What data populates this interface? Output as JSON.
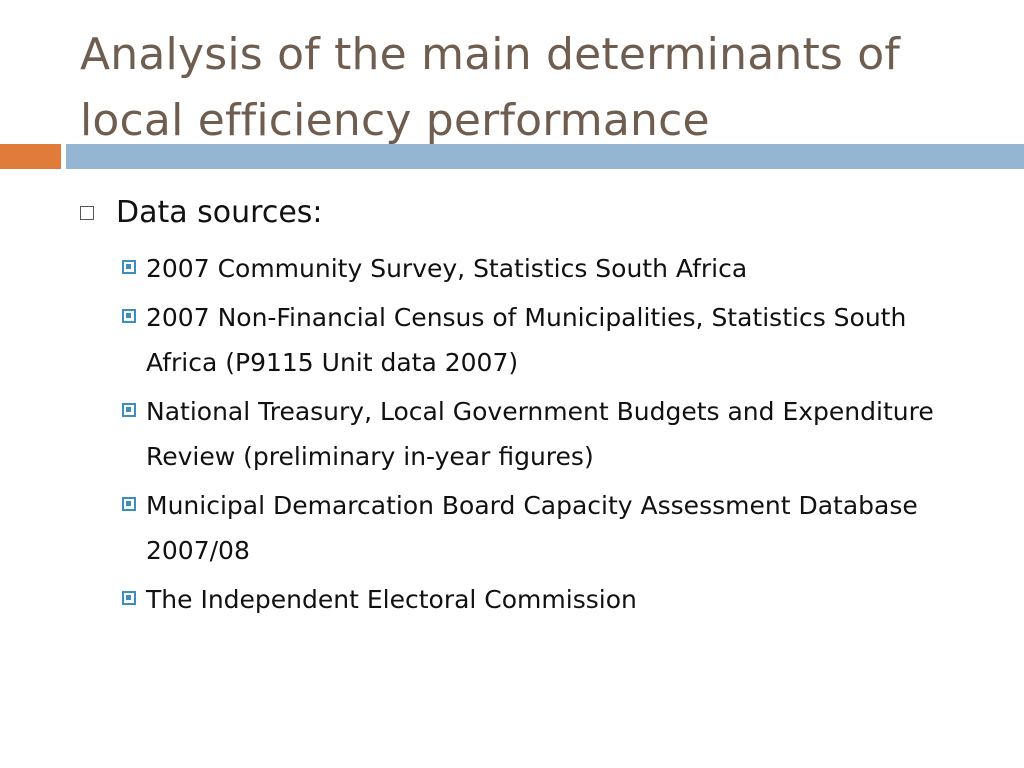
{
  "slide": {
    "title": "Analysis of the main determinants of local efficiency performance",
    "colors": {
      "title": "#6f5d4f",
      "accent_bar": "#e07b39",
      "rule_bar": "#94b6d2",
      "sub_bullet": "#3b8fbf"
    },
    "body": {
      "heading": "Data sources:",
      "items": [
        "2007 Community Survey, Statistics South Africa",
        "2007 Non-Financial Census of Municipalities, Statistics South Africa (P9115 Unit data 2007)",
        "National Treasury, Local Government Budgets and Expenditure Review (preliminary in-year figures)",
        "Municipal Demarcation Board Capacity Assessment Database 2007/08",
        "The Independent Electoral Commission"
      ]
    }
  }
}
